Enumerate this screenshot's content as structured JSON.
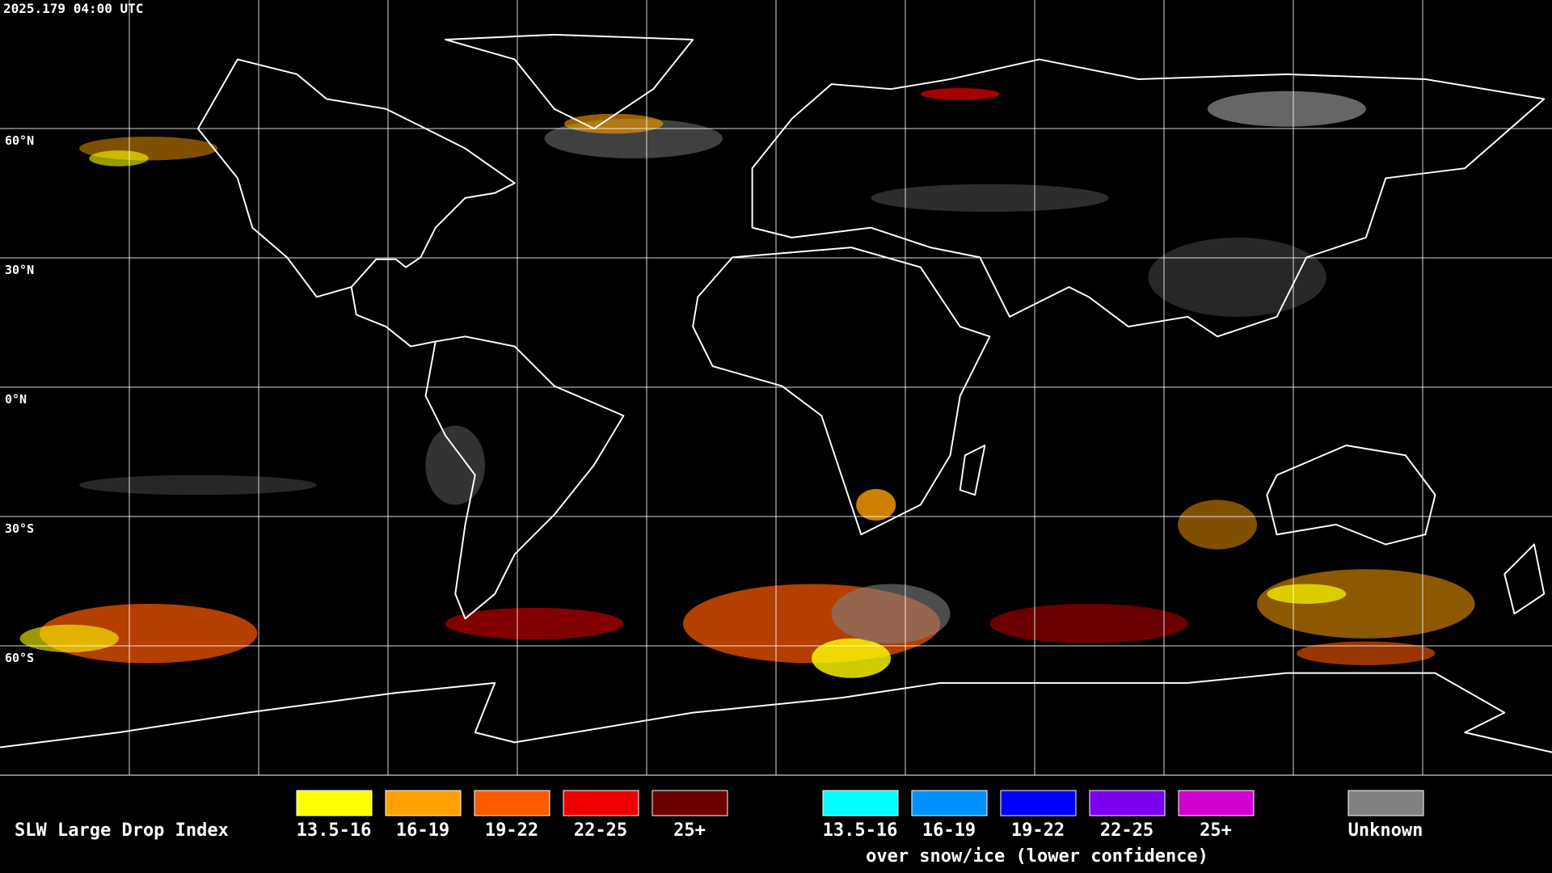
{
  "timestamp": "2025.179 04:00 UTC",
  "latitude_labels": [
    "60°N",
    "30°N",
    "0°N",
    "30°S",
    "60°S"
  ],
  "legend": {
    "title": "SLW Large Drop Index",
    "items": [
      {
        "label": "13.5-16",
        "color": "#ffff00"
      },
      {
        "label": "16-19",
        "color": "#ffa000"
      },
      {
        "label": "19-22",
        "color": "#ff5a00"
      },
      {
        "label": "22-25",
        "color": "#ee0000"
      },
      {
        "label": "25+",
        "color": "#6a0000"
      }
    ],
    "snow_items": [
      {
        "label": "13.5-16",
        "color": "#00ffff"
      },
      {
        "label": "16-19",
        "color": "#0090ff"
      },
      {
        "label": "19-22",
        "color": "#0000ff"
      },
      {
        "label": "22-25",
        "color": "#7a00ee"
      },
      {
        "label": "25+",
        "color": "#d000d0"
      }
    ],
    "snow_caption": "over snow/ice (lower confidence)",
    "unknown": {
      "label": "Unknown",
      "color": "#808080"
    }
  }
}
